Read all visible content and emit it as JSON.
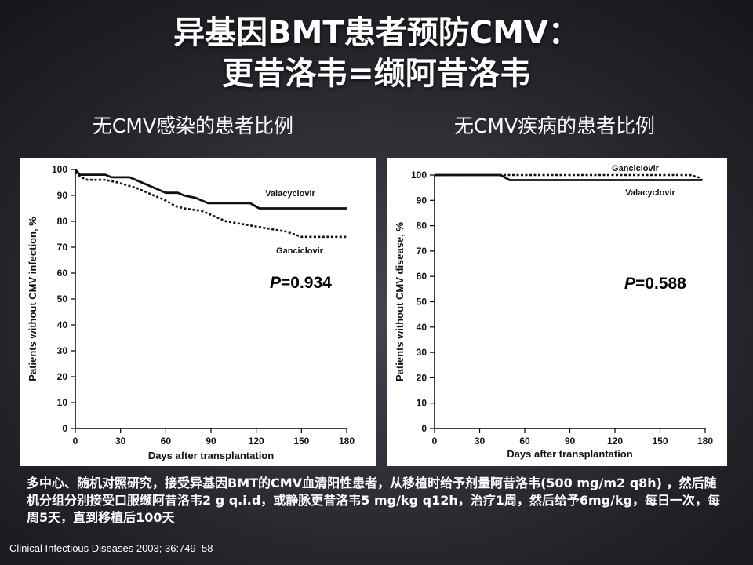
{
  "slide": {
    "title_line1": "异基因BMT患者预防CMV：",
    "title_line2": "更昔洛韦=缬阿昔洛韦",
    "description": "多中心、随机对照研究，接受异基因BMT的CMV血清阳性患者，从移植时给予剂量阿昔洛韦(500 mg/m2 q8h) ，然后随机分组分别接受口服缬阿昔洛韦2 g q.i.d，或静脉更昔洛韦5 mg/kg q12h，治疗1周，然后给予6mg/kg，每日一次，每周5天，直到移植后100天",
    "citation": "Clinical Infectious Diseases 2003; 36:749–58"
  },
  "chart_data": [
    {
      "type": "line",
      "subtitle": "无CMV感染的患者比例",
      "xlabel": "Days after transplantation",
      "ylabel": "Patients without CMV infection, %",
      "xlim": [
        0,
        180
      ],
      "ylim": [
        0,
        100
      ],
      "x_ticks": [
        0,
        30,
        60,
        90,
        120,
        150,
        180
      ],
      "y_ticks": [
        0,
        10,
        20,
        30,
        40,
        50,
        60,
        70,
        80,
        90,
        100
      ],
      "x_tick_labels": [
        "0",
        "30",
        "60",
        "90",
        "120",
        "150",
        "180"
      ],
      "y_tick_labels": [
        "0",
        "10",
        "20",
        "30",
        "40",
        "50",
        "60",
        "70",
        "80",
        "90",
        "100"
      ],
      "annotation_prefix": "P",
      "annotation_value": "=0.934",
      "series": [
        {
          "name": "Valacyclovir",
          "style": "solid",
          "points": [
            [
              0,
              100
            ],
            [
              3,
              98
            ],
            [
              10,
              98
            ],
            [
              20,
              98
            ],
            [
              24,
              97
            ],
            [
              36,
              97
            ],
            [
              40,
              96
            ],
            [
              48,
              94
            ],
            [
              56,
              92
            ],
            [
              60,
              91
            ],
            [
              68,
              91
            ],
            [
              72,
              90
            ],
            [
              80,
              89
            ],
            [
              88,
              87
            ],
            [
              96,
              87
            ],
            [
              106,
              87
            ],
            [
              116,
              87
            ],
            [
              122,
              85
            ],
            [
              128,
              85
            ],
            [
              140,
              85
            ],
            [
              180,
              85
            ]
          ]
        },
        {
          "name": "Ganciclovir",
          "style": "dotted",
          "points": [
            [
              0,
              99
            ],
            [
              4,
              97
            ],
            [
              8,
              96
            ],
            [
              20,
              96
            ],
            [
              28,
              95
            ],
            [
              34,
              94
            ],
            [
              40,
              93
            ],
            [
              48,
              91
            ],
            [
              56,
              89
            ],
            [
              60,
              88
            ],
            [
              66,
              86
            ],
            [
              72,
              85
            ],
            [
              84,
              84
            ],
            [
              92,
              82
            ],
            [
              100,
              80
            ],
            [
              110,
              79
            ],
            [
              120,
              78
            ],
            [
              130,
              77
            ],
            [
              140,
              76
            ],
            [
              150,
              74
            ],
            [
              160,
              74
            ],
            [
              180,
              74
            ]
          ]
        }
      ]
    },
    {
      "type": "line",
      "subtitle": "无CMV疾病的患者比例",
      "xlabel": "Days after transplantation",
      "ylabel": "Patients without CMV disease, %",
      "xlim": [
        0,
        180
      ],
      "ylim": [
        0,
        100
      ],
      "x_ticks": [
        0,
        30,
        60,
        90,
        120,
        150,
        180
      ],
      "y_ticks": [
        0,
        10,
        20,
        30,
        40,
        50,
        60,
        70,
        80,
        90,
        100
      ],
      "x_tick_labels": [
        "0",
        "30",
        "60",
        "90",
        "120",
        "150",
        "180"
      ],
      "y_tick_labels": [
        "0",
        "10",
        "20",
        "30",
        "40",
        "50",
        "60",
        "70",
        "80",
        "90",
        "100"
      ],
      "annotation_prefix": "P",
      "annotation_value": "=0.588",
      "series": [
        {
          "name": "Ganciclovir",
          "style": "dotted",
          "points": [
            [
              0,
              100
            ],
            [
              170,
              100
            ],
            [
              176,
              99
            ],
            [
              178,
              98
            ]
          ]
        },
        {
          "name": "Valacyclovir",
          "style": "solid",
          "points": [
            [
              0,
              100
            ],
            [
              44,
              100
            ],
            [
              50,
              98
            ],
            [
              56,
              98
            ],
            [
              178,
              98
            ]
          ]
        }
      ]
    }
  ]
}
